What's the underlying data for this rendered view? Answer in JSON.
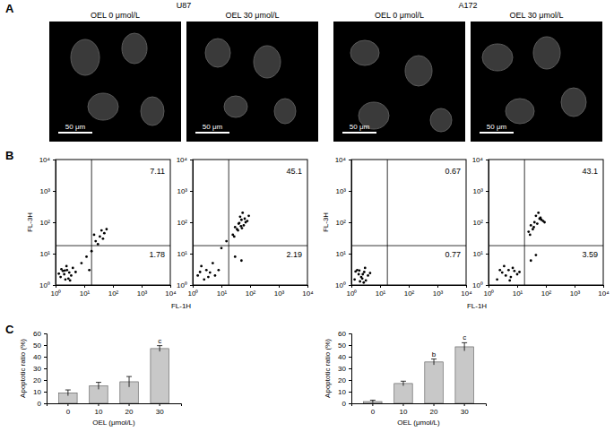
{
  "panel_labels": [
    "A",
    "B",
    "C"
  ],
  "images": [
    {
      "title": "U87",
      "panels": [
        {
          "label": "OEL 0 μmol/L",
          "scale_bar": "50 μm"
        },
        {
          "label": "OEL 30 μmol/L",
          "scale_bar": "50 μm"
        }
      ]
    },
    {
      "title": "A172",
      "panels": [
        {
          "label": "OEL 0 μmol/L",
          "scale_bar": "50 μm"
        },
        {
          "label": "OEL 30 μmol/L",
          "scale_bar": "50 μm"
        }
      ]
    }
  ],
  "chart_data": [
    {
      "type": "scatter",
      "x_label": "FL-1H",
      "y_label": "FL-3H",
      "log": true,
      "color": "#000000",
      "xlim": [
        1,
        10000
      ],
      "ylim": [
        1,
        10000
      ],
      "xticks": [
        {
          "value": 1,
          "label": "10⁰"
        },
        {
          "value": 10,
          "label": "10¹"
        },
        {
          "value": 100,
          "label": "10²"
        },
        {
          "value": 1000,
          "label": "10³"
        },
        {
          "value": 10000,
          "label": "10⁴"
        }
      ],
      "yticks": [
        {
          "value": 1,
          "label": "10⁰"
        },
        {
          "value": 10,
          "label": "10¹"
        },
        {
          "value": 100,
          "label": "10²"
        },
        {
          "value": 1000,
          "label": "10³"
        },
        {
          "value": 10000,
          "label": "10⁴"
        }
      ],
      "gate": {
        "x": 18,
        "y": 18
      },
      "quadrants": {
        "upper_right": 7.11,
        "lower_right": 1.78
      },
      "x": [
        1.5,
        2,
        2.5,
        3,
        2.2,
        1.8,
        3.5,
        4,
        2.8,
        1.3,
        2.4,
        3.2,
        1.6,
        5,
        2.1,
        8,
        12,
        18,
        25,
        35,
        50,
        30,
        45,
        60,
        22,
        15,
        40
      ],
      "y": [
        1.8,
        2.2,
        3,
        2.5,
        1.5,
        2.8,
        2,
        3.5,
        1.6,
        2.3,
        4,
        1.4,
        3.2,
        2.6,
        2.9,
        5,
        8,
        12,
        25,
        35,
        45,
        20,
        30,
        60,
        40,
        3,
        55
      ]
    },
    {
      "type": "scatter",
      "log": true,
      "color": "#000000",
      "xlim": [
        1,
        10000
      ],
      "ylim": [
        1,
        10000
      ],
      "xticks": [
        {
          "value": 1,
          "label": "10⁰"
        },
        {
          "value": 10,
          "label": "10¹"
        },
        {
          "value": 100,
          "label": "10²"
        },
        {
          "value": 1000,
          "label": "10³"
        },
        {
          "value": 10000,
          "label": "10⁴"
        }
      ],
      "yticks": [
        {
          "value": 1,
          "label": "10⁰"
        },
        {
          "value": 10,
          "label": "10¹"
        },
        {
          "value": 100,
          "label": "10²"
        },
        {
          "value": 1000,
          "label": "10³"
        },
        {
          "value": 10000,
          "label": "10⁴"
        }
      ],
      "gate": {
        "x": 18,
        "y": 18
      },
      "quadrants": {
        "upper_right": 45.1,
        "lower_right": 2.19
      },
      "x": [
        1.5,
        2.5,
        3,
        4,
        2,
        6,
        8,
        3.5,
        5,
        1.8,
        25,
        35,
        40,
        50,
        60,
        45,
        70,
        30,
        55,
        80,
        38,
        65,
        48,
        28,
        90,
        42,
        52,
        30,
        50,
        10,
        15
      ],
      "y": [
        2,
        1.5,
        3,
        2.5,
        4,
        2,
        3,
        1.8,
        5,
        2.6,
        40,
        60,
        90,
        120,
        80,
        150,
        100,
        70,
        200,
        110,
        55,
        130,
        75,
        35,
        160,
        95,
        65,
        8,
        6,
        15,
        25
      ]
    },
    {
      "type": "scatter",
      "x_label": "FL-1H",
      "y_label": "FL-3H",
      "log": true,
      "color": "#000000",
      "xlim": [
        1,
        10000
      ],
      "ylim": [
        1,
        10000
      ],
      "xticks": [
        {
          "value": 1,
          "label": "10⁰"
        },
        {
          "value": 10,
          "label": "10¹"
        },
        {
          "value": 100,
          "label": "10²"
        },
        {
          "value": 1000,
          "label": "10³"
        },
        {
          "value": 10000,
          "label": "10⁴"
        }
      ],
      "yticks": [
        {
          "value": 1,
          "label": "10⁰"
        },
        {
          "value": 10,
          "label": "10¹"
        },
        {
          "value": 100,
          "label": "10²"
        },
        {
          "value": 1000,
          "label": "10³"
        },
        {
          "value": 10000,
          "label": "10⁴"
        }
      ],
      "gate": {
        "x": 18,
        "y": 18
      },
      "quadrants": {
        "upper_right": 0.67,
        "lower_right": 0.77
      },
      "x": [
        1.3,
        1.8,
        2.2,
        2.8,
        3.2,
        1.6,
        2.5,
        3.8,
        2,
        1.4,
        3,
        2.4,
        1.9,
        2.7,
        4.5
      ],
      "y": [
        1.5,
        2.2,
        1.8,
        2.6,
        1.4,
        3,
        2.2,
        2,
        1.3,
        2.7,
        3.5,
        1.6,
        2.9,
        1.2,
        2.4
      ]
    },
    {
      "type": "scatter",
      "log": true,
      "color": "#000000",
      "xlim": [
        1,
        10000
      ],
      "ylim": [
        1,
        10000
      ],
      "xticks": [
        {
          "value": 1,
          "label": "10⁰"
        },
        {
          "value": 10,
          "label": "10¹"
        },
        {
          "value": 100,
          "label": "10²"
        },
        {
          "value": 1000,
          "label": "10³"
        },
        {
          "value": 10000,
          "label": "10⁴"
        }
      ],
      "yticks": [
        {
          "value": 1,
          "label": "10⁰"
        },
        {
          "value": 10,
          "label": "10¹"
        },
        {
          "value": 100,
          "label": "10²"
        },
        {
          "value": 1000,
          "label": "10³"
        },
        {
          "value": 10000,
          "label": "10⁴"
        }
      ],
      "gate": {
        "x": 18,
        "y": 18
      },
      "quadrants": {
        "upper_right": 43.1,
        "lower_right": 3.59
      },
      "x": [
        2,
        3,
        4,
        5,
        6,
        8,
        10,
        3.5,
        5.5,
        7,
        12,
        2.5,
        25,
        30,
        40,
        50,
        60,
        45,
        70,
        35,
        55,
        80,
        38,
        65,
        28,
        90,
        30,
        45
      ],
      "y": [
        1.5,
        2.5,
        2,
        3,
        1.8,
        2.8,
        2.2,
        4,
        1.4,
        3.5,
        2.6,
        3,
        50,
        80,
        100,
        90,
        130,
        160,
        120,
        60,
        200,
        110,
        70,
        140,
        40,
        100,
        6,
        9
      ]
    },
    {
      "type": "bar",
      "x_label": "OEL (μmol/L)",
      "y_label": "Apoptotic ratio (%)",
      "color": "#c8c8c8",
      "categories": [
        "0",
        "10",
        "20",
        "30"
      ],
      "values": [
        9,
        15,
        18.5,
        47
      ],
      "errors": [
        2.5,
        3,
        4.5,
        2.5
      ],
      "annotations": [
        null,
        null,
        null,
        "c"
      ],
      "ylim": [
        0,
        60
      ],
      "yticks": [
        0,
        10,
        20,
        30,
        40,
        50,
        60
      ]
    },
    {
      "type": "bar",
      "x_label": "OEL (μmol/L)",
      "y_label": "Apoptotic ratio (%)",
      "color": "#c8c8c8",
      "categories": [
        "0",
        "10",
        "20",
        "30"
      ],
      "values": [
        1.5,
        17,
        35.5,
        48.5
      ],
      "errors": [
        1.2,
        2,
        2.5,
        3.5
      ],
      "annotations": [
        null,
        null,
        "b",
        "c"
      ],
      "ylim": [
        0,
        60
      ],
      "yticks": [
        0,
        10,
        20,
        30,
        40,
        50,
        60
      ]
    }
  ]
}
